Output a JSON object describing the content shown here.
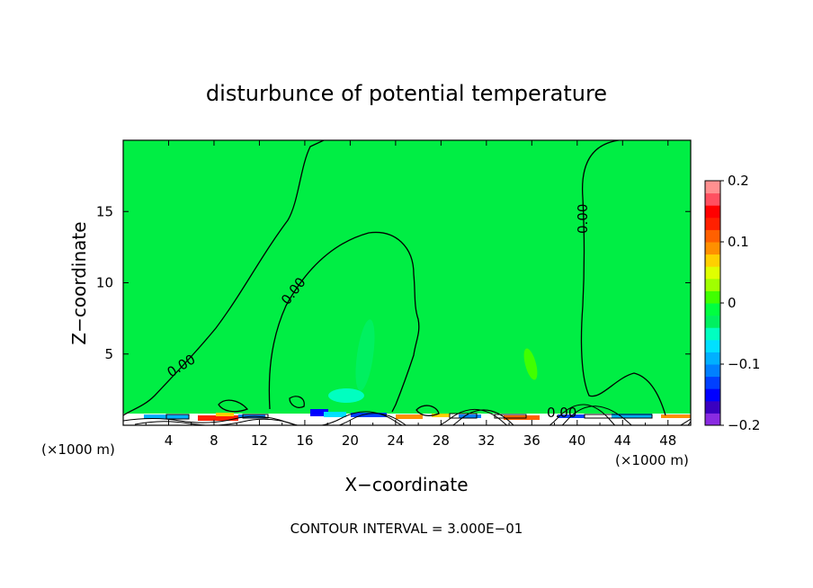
{
  "chart_data": {
    "type": "heatmap",
    "title": "disturbunce of potential temperature",
    "xlabel": "X−coordinate",
    "ylabel": "Z−coordinate",
    "x_unit_left": "(×1000 m)",
    "x_unit_right": "(×1000 m)",
    "xlim": [
      0,
      50
    ],
    "ylim": [
      0,
      20
    ],
    "x_ticks": [
      4,
      8,
      12,
      16,
      20,
      24,
      28,
      32,
      36,
      40,
      44,
      48
    ],
    "y_ticks": [
      5,
      10,
      15
    ],
    "contour_level_label": "0.00",
    "contour_interval_text": "CONTOUR INTERVAL = 3.000E−01",
    "colorbar": {
      "min": -0.2,
      "max": 0.2,
      "ticks": [
        {
          "value": 0.2,
          "label": "0.2"
        },
        {
          "value": 0.1,
          "label": "0.1"
        },
        {
          "value": 0,
          "label": "0"
        },
        {
          "value": -0.1,
          "label": "−0.1"
        },
        {
          "value": -0.2,
          "label": "−0.2"
        }
      ],
      "colors": [
        "#8a2be2",
        "#3a00c0",
        "#0000ff",
        "#0040ff",
        "#0080ff",
        "#00b0ff",
        "#00e0ff",
        "#00ffc0",
        "#00f060",
        "#00ff40",
        "#40ff00",
        "#a0ff00",
        "#e0ff00",
        "#ffd000",
        "#ff9000",
        "#ff6000",
        "#ff2000",
        "#ff0000",
        "#ff5060",
        "#ff9090"
      ]
    },
    "background_color": "#00ee44",
    "anomalies": [
      {
        "x": 21.5,
        "z": 5.0,
        "value": -0.02
      },
      {
        "x": 35.5,
        "z": 4.2,
        "value": 0.01
      },
      {
        "x": 20.0,
        "z": 1.2,
        "value": -0.05
      }
    ]
  }
}
